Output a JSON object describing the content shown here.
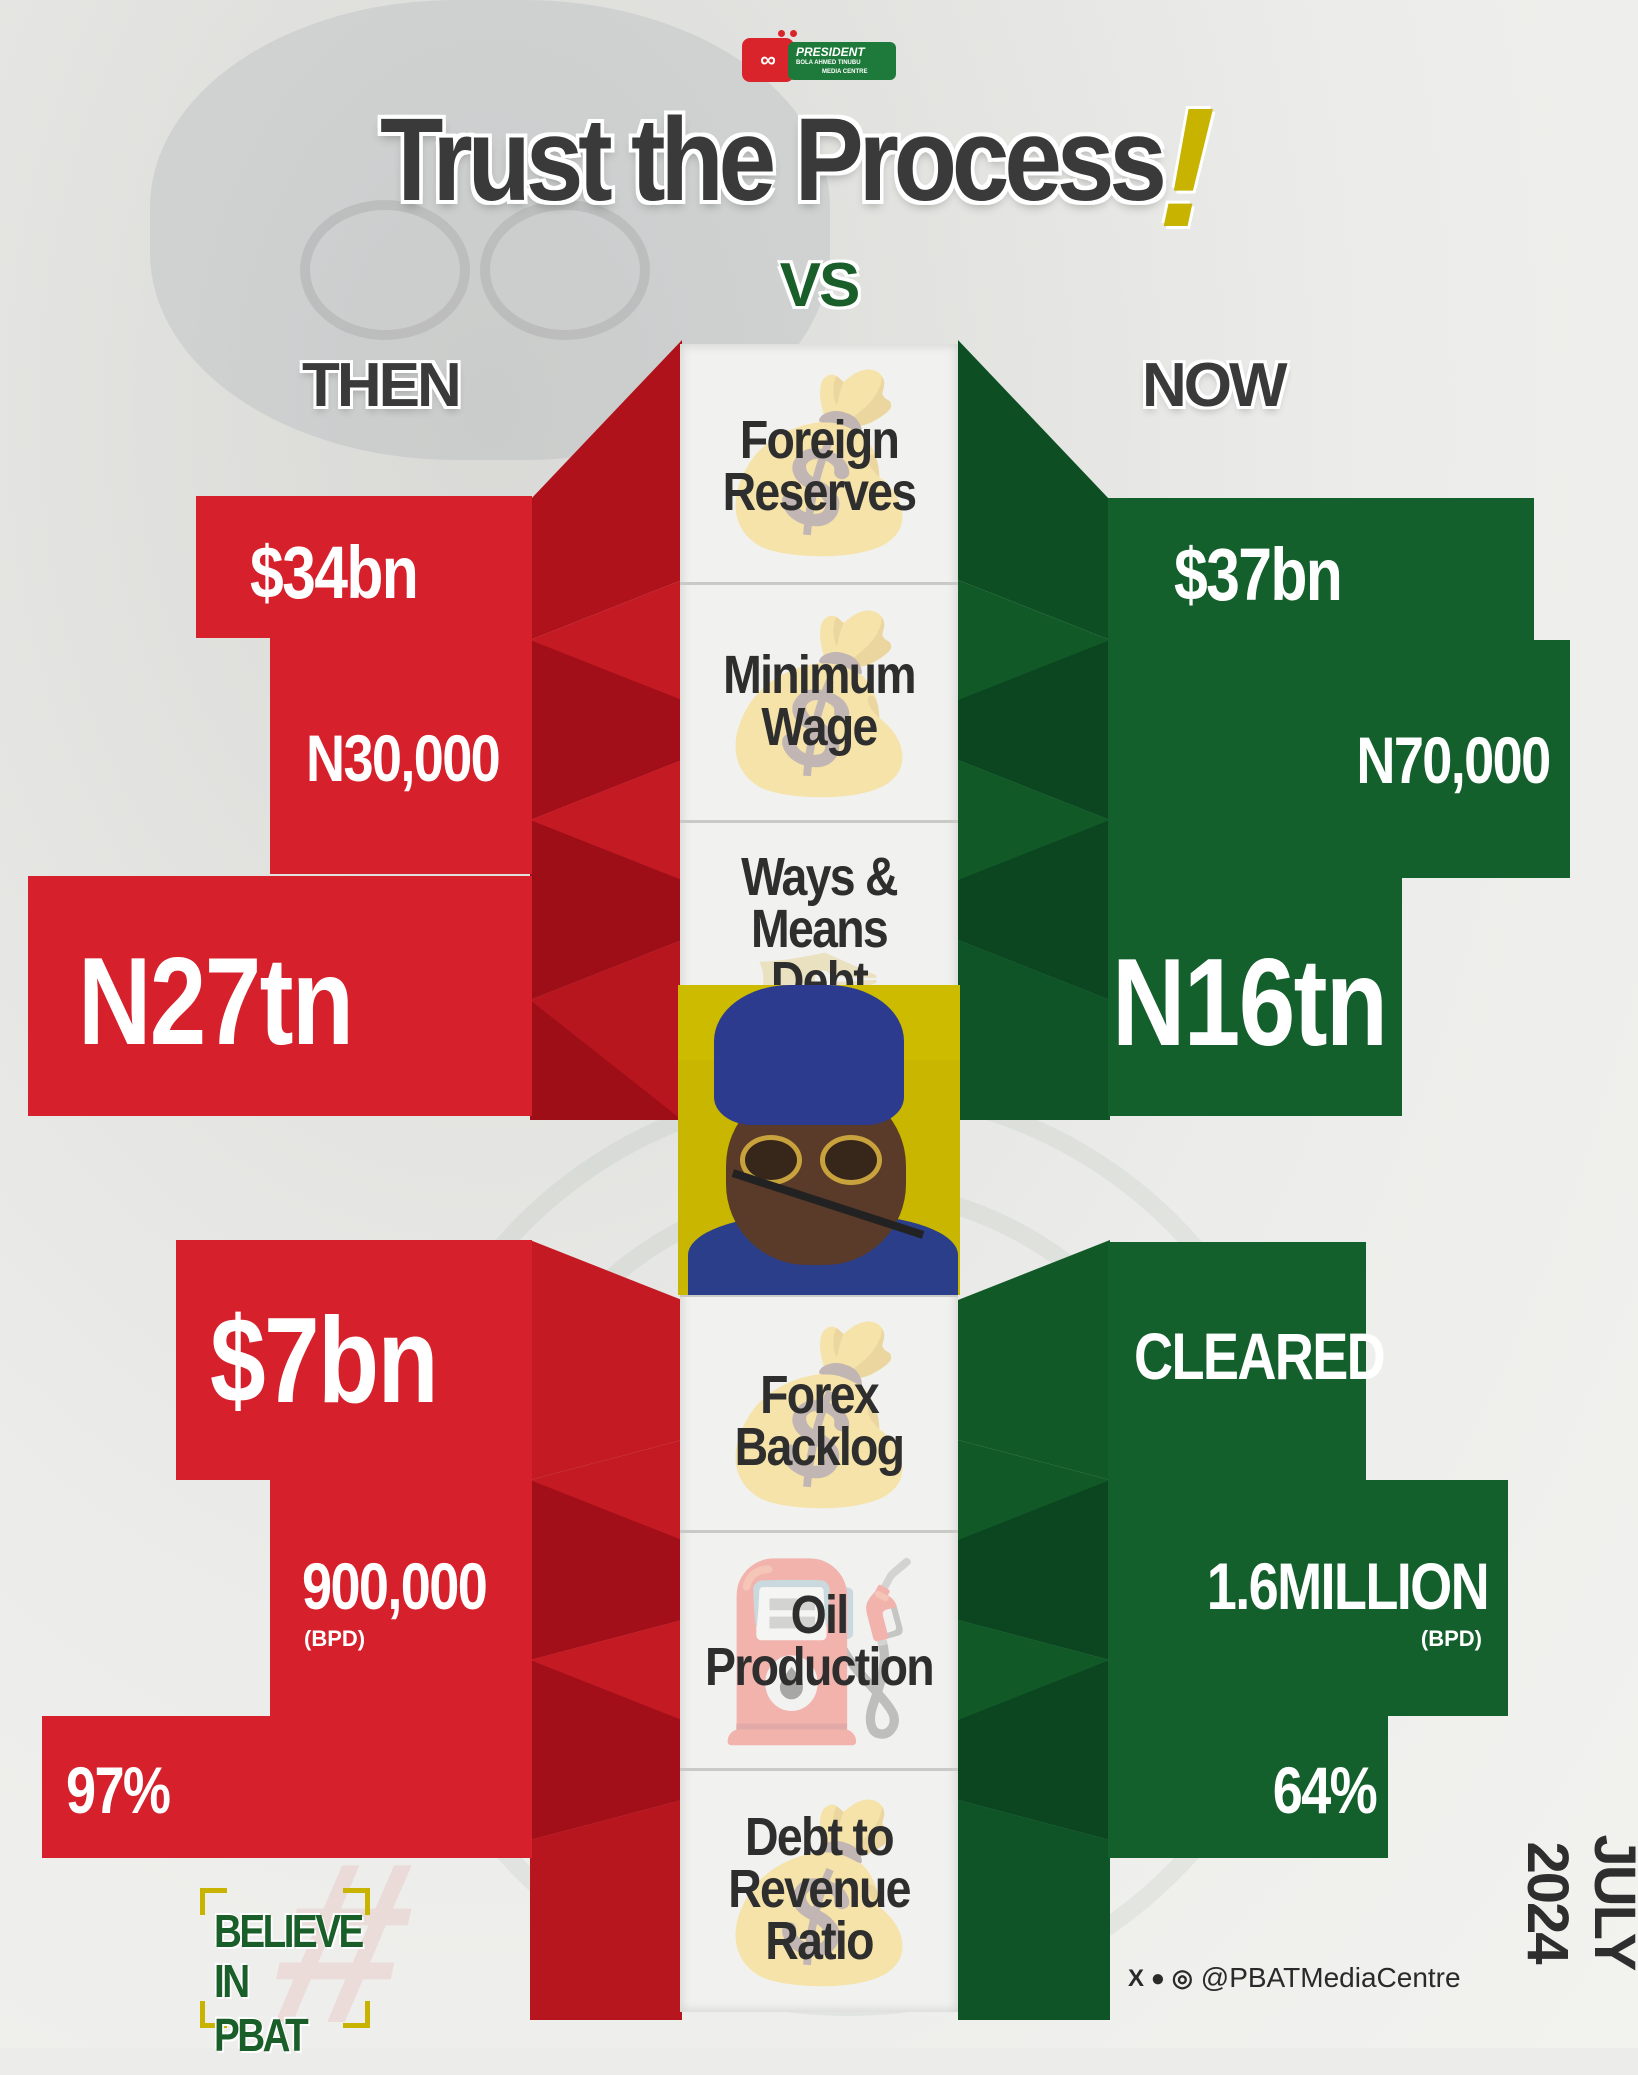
{
  "header": {
    "logo_badge": "∞",
    "logo_line1": "PRESIDENT",
    "logo_line2": "BOLA AHMED TINUBU",
    "logo_line3": "MEDIA CENTRE",
    "title": "Trust the Process",
    "exclaim": "!",
    "vs": "VS",
    "then": "THEN",
    "now": "NOW"
  },
  "colors": {
    "red": "#d6202b",
    "green": "#13602c",
    "accent": "#c8b400"
  },
  "metrics": [
    {
      "label_1": "Foreign",
      "label_2": "Reserves",
      "then": "$34bn",
      "now": "$37bn",
      "icon": "money-bag-icon"
    },
    {
      "label_1": "Minimum",
      "label_2": "Wage",
      "then": "N30,000",
      "now": "N70,000",
      "icon": "money-bag-icon"
    },
    {
      "label_1": "Ways &",
      "label_2": "Means Debt",
      "then": "N27tn",
      "now": "N16tn",
      "icon": "pen-icon"
    },
    {
      "label_1": "Forex",
      "label_2": "Backlog",
      "then": "$7bn",
      "now": "CLEARED",
      "icon": "money-bag-icon"
    },
    {
      "label_1": "Oil",
      "label_2": "Production",
      "then": "900,000",
      "then_unit": "(BPD)",
      "now": "1.6MILLION",
      "now_unit": "(BPD)",
      "icon": "oil-pump-icon"
    },
    {
      "label_1": "Debt to",
      "label_2": "Revenue",
      "label_3": "Ratio",
      "then": "97%",
      "now": "64%",
      "icon": "money-bag-icon"
    }
  ],
  "footer": {
    "believe_1": "BELIEVE",
    "believe_2": "IN PBAT",
    "social_icons": "X ● ◎",
    "handle": "@PBATMediaCentre",
    "date": "JULY 2024"
  }
}
